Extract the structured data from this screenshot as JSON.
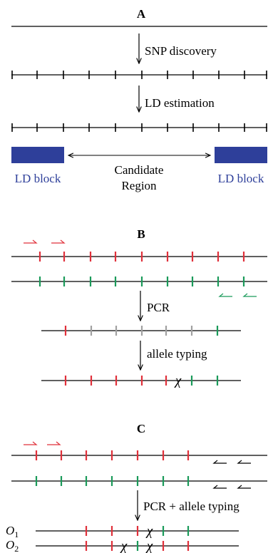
{
  "panel_a": {
    "label": "A",
    "step1": "SNP discovery",
    "step2": "LD estimation",
    "left_block": "LD block",
    "right_block": "LD block",
    "region_line1": "Candidate",
    "region_line2": "Region",
    "block_color": "#2e3f9a"
  },
  "panel_b": {
    "label": "B",
    "step1": "PCR",
    "step2": "allele typing",
    "crossover": "χ"
  },
  "panel_c": {
    "label": "C",
    "step1": "PCR + allele typing",
    "o1_label": "O",
    "o1_sub": "1",
    "o2_label": "O",
    "o2_sub": "2",
    "crossover": "χ"
  },
  "colors": {
    "red": "#e0303a",
    "green": "#1a9a5a",
    "gray": "#a0a0a0",
    "black": "#000000"
  }
}
